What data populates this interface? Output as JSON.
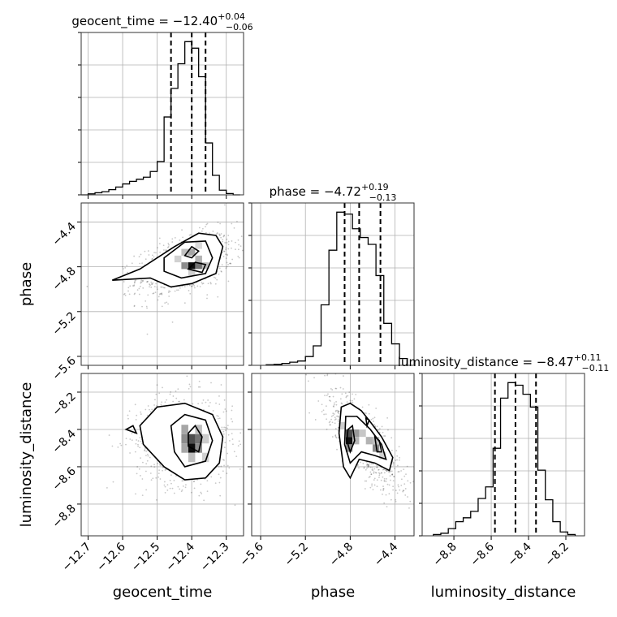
{
  "chart_data": {
    "type": "corner",
    "parameters": [
      {
        "name": "geocent_time",
        "label": "geocent_time",
        "title": "geocent_time = −12.40",
        "title_upper": "+0.04",
        "title_lower": "−0.06",
        "range": [
          -12.72,
          -12.25
        ],
        "ticks": [
          -12.7,
          -12.6,
          -12.5,
          -12.4,
          -12.3
        ],
        "tick_labels": [
          "−12.7",
          "−12.6",
          "−12.5",
          "−12.4",
          "−12.3"
        ],
        "quantiles": [
          -12.46,
          -12.4,
          -12.36
        ],
        "hist_edges": [
          -12.72,
          -12.7,
          -12.68,
          -12.66,
          -12.64,
          -12.62,
          -12.6,
          -12.58,
          -12.56,
          -12.54,
          -12.52,
          -12.5,
          -12.48,
          -12.46,
          -12.44,
          -12.42,
          -12.4,
          -12.38,
          -12.36,
          -12.34,
          -12.32,
          -12.3,
          -12.28,
          -12.26
        ],
        "hist_counts": [
          0,
          0.4,
          0.8,
          1.2,
          2.0,
          3.0,
          4.2,
          5.2,
          6.0,
          6.8,
          9.0,
          12.8,
          30.0,
          41.0,
          50.5,
          59.0,
          56.5,
          45.5,
          20.0,
          7.5,
          1.8,
          0.5,
          0
        ]
      },
      {
        "name": "phase",
        "label": "phase",
        "title": "phase = −4.72",
        "title_upper": "+0.19",
        "title_lower": "−0.13",
        "range": [
          -5.68,
          -4.23
        ],
        "ticks": [
          -5.6,
          -5.2,
          -4.8,
          -4.4
        ],
        "tick_labels": [
          "−5.6",
          "−5.2",
          "−4.8",
          "−4.4"
        ],
        "quantiles": [
          -4.85,
          -4.72,
          -4.53
        ],
        "hist_edges": [
          -5.55,
          -5.48,
          -5.41,
          -5.34,
          -5.27,
          -5.2,
          -5.13,
          -5.06,
          -4.99,
          -4.92,
          -4.85,
          -4.78,
          -4.71,
          -4.64,
          -4.57,
          -4.5,
          -4.43,
          -4.36,
          -4.29
        ],
        "hist_counts": [
          0.3,
          0.5,
          1.0,
          1.6,
          2.2,
          4.5,
          10.0,
          31.0,
          59.0,
          78.5,
          77.5,
          70.0,
          65.5,
          62.0,
          46.0,
          21.5,
          11.0,
          3.5
        ]
      },
      {
        "name": "luminosity_distance",
        "label": "luminosity_distance",
        "title": "luminosity_distance = −8.47",
        "title_upper": "+0.11",
        "title_lower": "−0.11",
        "range": [
          -8.97,
          -8.1
        ],
        "ticks": [
          -8.8,
          -8.6,
          -8.4,
          -8.2
        ],
        "tick_labels": [
          "−8.8",
          "−8.6",
          "−8.4",
          "−8.2"
        ],
        "quantiles": [
          -8.58,
          -8.47,
          -8.36
        ],
        "hist_edges": [
          -8.91,
          -8.87,
          -8.83,
          -8.79,
          -8.75,
          -8.71,
          -8.67,
          -8.63,
          -8.59,
          -8.55,
          -8.51,
          -8.47,
          -8.43,
          -8.39,
          -8.35,
          -8.31,
          -8.27,
          -8.23,
          -8.19,
          -8.15
        ],
        "hist_counts": [
          0.5,
          1.0,
          2.8,
          5.5,
          7.0,
          9.5,
          14.5,
          19.0,
          34.0,
          53.5,
          59.5,
          58.5,
          55.0,
          50.0,
          25.5,
          14.0,
          5.5,
          1.5,
          0.5
        ]
      }
    ],
    "pairs": [
      {
        "x_param": "geocent_time",
        "y_param": "phase",
        "levels": [
          [
            [
              -12.63,
              -4.92
            ],
            [
              -12.55,
              -4.82
            ],
            [
              -12.45,
              -4.62
            ],
            [
              -12.38,
              -4.5
            ],
            [
              -12.33,
              -4.52
            ],
            [
              -12.31,
              -4.62
            ],
            [
              -12.33,
              -4.86
            ],
            [
              -12.4,
              -4.95
            ],
            [
              -12.46,
              -4.98
            ],
            [
              -12.52,
              -4.9
            ],
            [
              -12.63,
              -4.92
            ]
          ],
          [
            [
              -12.48,
              -4.72
            ],
            [
              -12.42,
              -4.58
            ],
            [
              -12.36,
              -4.57
            ],
            [
              -12.34,
              -4.72
            ],
            [
              -12.36,
              -4.86
            ],
            [
              -12.43,
              -4.9
            ],
            [
              -12.48,
              -4.84
            ],
            [
              -12.48,
              -4.72
            ]
          ],
          [
            [
              -12.42,
              -4.7
            ],
            [
              -12.4,
              -4.62
            ],
            [
              -12.38,
              -4.66
            ],
            [
              -12.4,
              -4.72
            ],
            [
              -12.42,
              -4.7
            ]
          ],
          [
            [
              -12.41,
              -4.82
            ],
            [
              -12.39,
              -4.76
            ],
            [
              -12.36,
              -4.78
            ],
            [
              -12.37,
              -4.85
            ],
            [
              -12.41,
              -4.82
            ]
          ]
        ],
        "cells": [
          {
            "x": -12.4,
            "y": -4.79,
            "w": 0.02,
            "h": 0.06,
            "shade": 0.95
          },
          {
            "x": -12.38,
            "y": -4.79,
            "w": 0.02,
            "h": 0.06,
            "shade": 0.55
          },
          {
            "x": -12.42,
            "y": -4.79,
            "w": 0.02,
            "h": 0.06,
            "shade": 0.45
          },
          {
            "x": -12.4,
            "y": -4.67,
            "w": 0.02,
            "h": 0.06,
            "shade": 0.35
          },
          {
            "x": -12.38,
            "y": -4.73,
            "w": 0.02,
            "h": 0.06,
            "shade": 0.3
          },
          {
            "x": -12.42,
            "y": -4.67,
            "w": 0.02,
            "h": 0.06,
            "shade": 0.25
          },
          {
            "x": -12.36,
            "y": -4.79,
            "w": 0.02,
            "h": 0.06,
            "shade": 0.25
          },
          {
            "x": -12.44,
            "y": -4.73,
            "w": 0.02,
            "h": 0.06,
            "shade": 0.18
          },
          {
            "x": -12.38,
            "y": -4.61,
            "w": 0.02,
            "h": 0.06,
            "shade": 0.15
          },
          {
            "x": -12.4,
            "y": -4.85,
            "w": 0.02,
            "h": 0.06,
            "shade": 0.18
          }
        ],
        "cloud": {
          "cx": -12.42,
          "cy": -4.78,
          "sx": 0.07,
          "sy": 0.14,
          "rho": 0.45,
          "count": 900
        }
      },
      {
        "x_param": "geocent_time",
        "y_param": "luminosity_distance",
        "levels": [
          [
            [
              -12.55,
              -8.38
            ],
            [
              -12.5,
              -8.28
            ],
            [
              -12.42,
              -8.26
            ],
            [
              -12.34,
              -8.32
            ],
            [
              -12.31,
              -8.44
            ],
            [
              -12.32,
              -8.58
            ],
            [
              -12.36,
              -8.66
            ],
            [
              -12.42,
              -8.67
            ],
            [
              -12.48,
              -8.6
            ],
            [
              -12.54,
              -8.48
            ],
            [
              -12.55,
              -8.38
            ]
          ],
          [
            [
              -12.46,
              -8.38
            ],
            [
              -12.42,
              -8.32
            ],
            [
              -12.36,
              -8.35
            ],
            [
              -12.34,
              -8.46
            ],
            [
              -12.36,
              -8.57
            ],
            [
              -12.42,
              -8.6
            ],
            [
              -12.45,
              -8.52
            ],
            [
              -12.46,
              -8.38
            ]
          ],
          [
            [
              -12.41,
              -8.42
            ],
            [
              -12.39,
              -8.38
            ],
            [
              -12.37,
              -8.44
            ],
            [
              -12.38,
              -8.52
            ],
            [
              -12.41,
              -8.49
            ],
            [
              -12.41,
              -8.42
            ]
          ],
          [
            [
              -12.59,
              -8.4
            ],
            [
              -12.57,
              -8.38
            ],
            [
              -12.56,
              -8.42
            ],
            [
              -12.59,
              -8.4
            ]
          ]
        ],
        "cells": [
          {
            "x": -12.4,
            "y": -8.5,
            "w": 0.02,
            "h": 0.05,
            "shade": 0.95
          },
          {
            "x": -12.4,
            "y": -8.45,
            "w": 0.02,
            "h": 0.05,
            "shade": 0.7
          },
          {
            "x": -12.38,
            "y": -8.45,
            "w": 0.02,
            "h": 0.05,
            "shade": 0.55
          },
          {
            "x": -12.42,
            "y": -8.45,
            "w": 0.02,
            "h": 0.05,
            "shade": 0.45
          },
          {
            "x": -12.42,
            "y": -8.4,
            "w": 0.02,
            "h": 0.05,
            "shade": 0.35
          },
          {
            "x": -12.38,
            "y": -8.5,
            "w": 0.02,
            "h": 0.05,
            "shade": 0.45
          },
          {
            "x": -12.42,
            "y": -8.5,
            "w": 0.02,
            "h": 0.05,
            "shade": 0.35
          },
          {
            "x": -12.38,
            "y": -8.4,
            "w": 0.02,
            "h": 0.05,
            "shade": 0.25
          },
          {
            "x": -12.36,
            "y": -8.45,
            "w": 0.02,
            "h": 0.05,
            "shade": 0.2
          },
          {
            "x": -12.4,
            "y": -8.55,
            "w": 0.02,
            "h": 0.05,
            "shade": 0.25
          },
          {
            "x": -12.36,
            "y": -8.55,
            "w": 0.02,
            "h": 0.05,
            "shade": 0.18
          }
        ],
        "cloud": {
          "cx": -12.42,
          "cy": -8.46,
          "sx": 0.07,
          "sy": 0.12,
          "rho": 0.0,
          "count": 900
        }
      },
      {
        "x_param": "phase",
        "y_param": "luminosity_distance",
        "levels": [
          [
            [
              -4.88,
              -8.28
            ],
            [
              -4.8,
              -8.26
            ],
            [
              -4.7,
              -8.3
            ],
            [
              -4.62,
              -8.36
            ],
            [
              -4.52,
              -8.44
            ],
            [
              -4.42,
              -8.55
            ],
            [
              -4.45,
              -8.62
            ],
            [
              -4.58,
              -8.58
            ],
            [
              -4.72,
              -8.56
            ],
            [
              -4.8,
              -8.66
            ],
            [
              -4.86,
              -8.6
            ],
            [
              -4.9,
              -8.42
            ],
            [
              -4.88,
              -8.28
            ]
          ],
          [
            [
              -4.84,
              -8.33
            ],
            [
              -4.74,
              -8.33
            ],
            [
              -4.62,
              -8.4
            ],
            [
              -4.52,
              -8.48
            ],
            [
              -4.48,
              -8.56
            ],
            [
              -4.58,
              -8.54
            ],
            [
              -4.7,
              -8.52
            ],
            [
              -4.8,
              -8.58
            ],
            [
              -4.85,
              -8.48
            ],
            [
              -4.84,
              -8.33
            ]
          ],
          [
            [
              -4.82,
              -8.4
            ],
            [
              -4.78,
              -8.38
            ],
            [
              -4.76,
              -8.46
            ],
            [
              -4.8,
              -8.52
            ],
            [
              -4.83,
              -8.46
            ],
            [
              -4.82,
              -8.4
            ]
          ],
          [
            [
              -4.58,
              -8.44
            ],
            [
              -4.54,
              -8.46
            ],
            [
              -4.52,
              -8.52
            ],
            [
              -4.56,
              -8.52
            ],
            [
              -4.58,
              -8.44
            ]
          ],
          [
            [
              -4.66,
              -8.34
            ],
            [
              -4.63,
              -8.35
            ],
            [
              -4.65,
              -8.38
            ],
            [
              -4.66,
              -8.34
            ]
          ]
        ],
        "cells": [
          {
            "x": -4.81,
            "y": -8.46,
            "w": 0.06,
            "h": 0.04,
            "shade": 0.95
          },
          {
            "x": -4.81,
            "y": -8.42,
            "w": 0.06,
            "h": 0.04,
            "shade": 0.7
          },
          {
            "x": -4.75,
            "y": -8.42,
            "w": 0.06,
            "h": 0.04,
            "shade": 0.4
          },
          {
            "x": -4.81,
            "y": -8.5,
            "w": 0.06,
            "h": 0.04,
            "shade": 0.45
          },
          {
            "x": -4.75,
            "y": -8.46,
            "w": 0.06,
            "h": 0.04,
            "shade": 0.3
          },
          {
            "x": -4.57,
            "y": -8.5,
            "w": 0.06,
            "h": 0.04,
            "shade": 0.45
          },
          {
            "x": -4.63,
            "y": -8.46,
            "w": 0.06,
            "h": 0.04,
            "shade": 0.3
          },
          {
            "x": -4.69,
            "y": -8.42,
            "w": 0.06,
            "h": 0.04,
            "shade": 0.22
          },
          {
            "x": -4.87,
            "y": -8.38,
            "w": 0.06,
            "h": 0.04,
            "shade": 0.2
          },
          {
            "x": -4.57,
            "y": -8.46,
            "w": 0.06,
            "h": 0.04,
            "shade": 0.25
          },
          {
            "x": -4.51,
            "y": -8.54,
            "w": 0.06,
            "h": 0.04,
            "shade": 0.18
          }
        ],
        "cloud": {
          "cx": -4.68,
          "cy": -8.46,
          "sx": 0.16,
          "sy": 0.13,
          "rho": -0.75,
          "count": 900
        }
      }
    ]
  }
}
